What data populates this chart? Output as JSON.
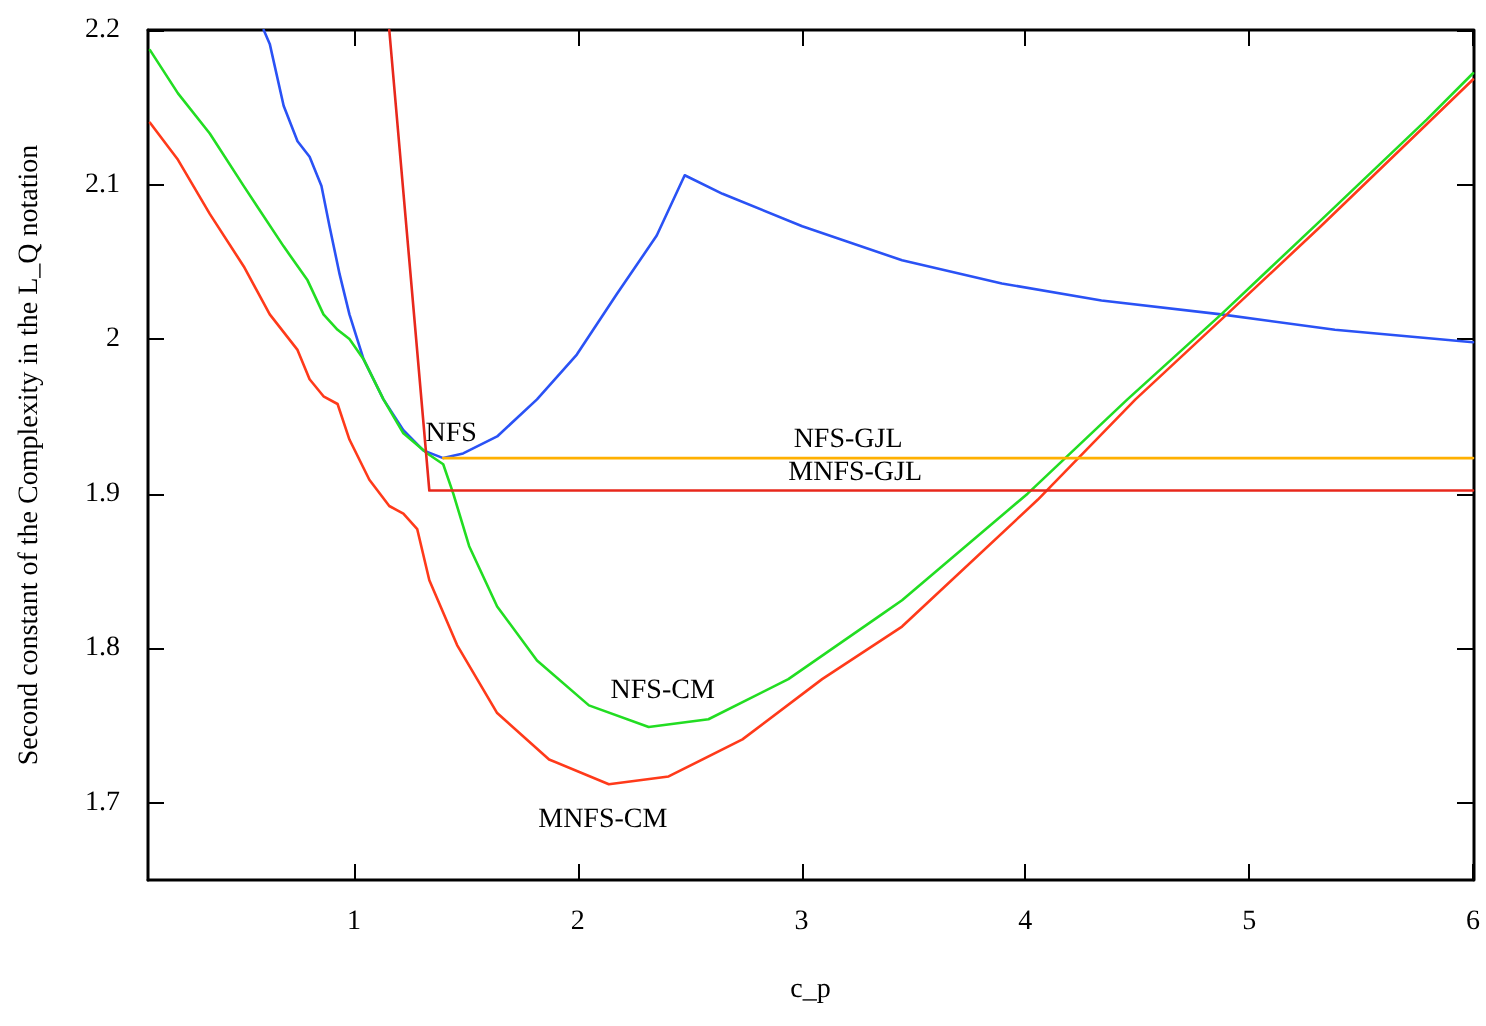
{
  "chart_data": {
    "type": "line",
    "xlabel": "c_p",
    "ylabel": "Second constant of the Complexity in the L_Q notation",
    "xlim": [
      0.08,
      6
    ],
    "ylim": [
      1.65,
      2.2
    ],
    "xticks": [
      1,
      2,
      3,
      4,
      5,
      6
    ],
    "yticks": [
      1.7,
      1.8,
      1.9,
      2,
      2.1,
      2.2
    ],
    "series": [
      {
        "name": "NFS",
        "color": "#2a52f5",
        "x": [
          0.597,
          0.624,
          0.686,
          0.748,
          0.802,
          0.855,
          0.891,
          0.936,
          0.98,
          1.043,
          1.132,
          1.221,
          1.31,
          1.399,
          1.488,
          1.64,
          1.818,
          1.996,
          2.174,
          2.353,
          2.478,
          2.647,
          3.003,
          3.449,
          3.895,
          4.34,
          4.875,
          5.383,
          6
        ],
        "values": [
          2.2,
          2.191,
          2.151,
          2.128,
          2.118,
          2.099,
          2.073,
          2.042,
          2.016,
          1.987,
          1.961,
          1.941,
          1.928,
          1.923,
          1.926,
          1.937,
          1.961,
          1.99,
          2.029,
          2.067,
          2.106,
          2.094,
          2.073,
          2.051,
          2.036,
          2.025,
          2.016,
          2.006,
          1.998
        ]
      },
      {
        "name": "NFS-CM",
        "color": "#22dd22",
        "x": [
          0.089,
          0.214,
          0.356,
          0.508,
          0.686,
          0.793,
          0.864,
          0.927,
          0.98,
          1.043,
          1.132,
          1.221,
          1.328,
          1.399,
          1.444,
          1.515,
          1.64,
          1.818,
          2.05,
          2.317,
          2.584,
          2.941,
          3.36,
          3.449,
          4.01,
          4.456,
          4.875,
          5.321,
          5.793,
          6
        ],
        "values": [
          2.187,
          2.159,
          2.133,
          2.099,
          2.06,
          2.038,
          2.016,
          2.006,
          2.0,
          1.987,
          1.961,
          1.939,
          1.926,
          1.919,
          1.9,
          1.866,
          1.827,
          1.792,
          1.763,
          1.749,
          1.754,
          1.78,
          1.822,
          1.831,
          1.9,
          1.961,
          2.016,
          2.077,
          2.142,
          2.172
        ]
      },
      {
        "name": "MNFS-CM",
        "color": "#ff3a1a",
        "x": [
          0.089,
          0.214,
          0.356,
          0.508,
          0.624,
          0.748,
          0.802,
          0.864,
          0.927,
          0.98,
          1.069,
          1.158,
          1.221,
          1.283,
          1.337,
          1.461,
          1.64,
          1.872,
          2.139,
          2.406,
          2.736,
          3.092,
          3.449,
          4.055,
          4.492,
          4.893,
          5.32,
          5.793,
          6
        ],
        "values": [
          2.14,
          2.116,
          2.081,
          2.047,
          2.016,
          1.993,
          1.974,
          1.963,
          1.958,
          1.935,
          1.909,
          1.892,
          1.887,
          1.877,
          1.844,
          1.802,
          1.758,
          1.728,
          1.712,
          1.717,
          1.741,
          1.78,
          1.814,
          1.896,
          1.961,
          2.015,
          2.073,
          2.139,
          2.168
        ]
      },
      {
        "name": "NFS-GJL",
        "color": "#ffb000",
        "x": [
          1.399,
          6
        ],
        "values": [
          1.923,
          1.923
        ]
      },
      {
        "name": "MNFS-GJL",
        "color": "#e8281c",
        "x": [
          1.158,
          1.337,
          6
        ],
        "values": [
          2.2,
          1.902,
          1.902
        ]
      }
    ]
  }
}
